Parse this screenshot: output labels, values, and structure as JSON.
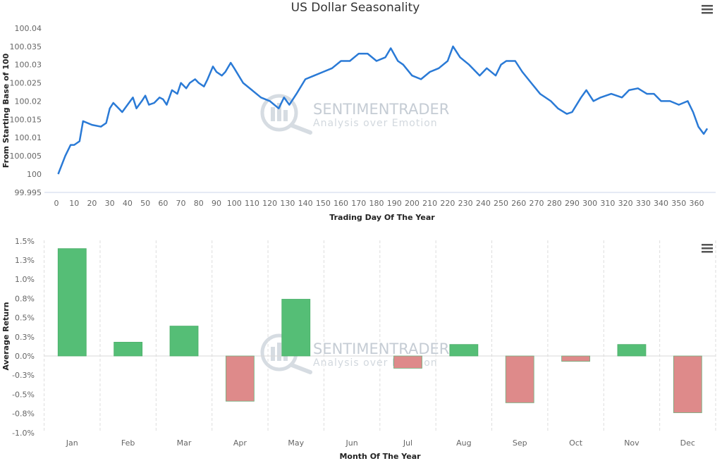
{
  "watermark": {
    "brand": "SENTIMENTRADER",
    "tagline": "Analysis over Emotion"
  },
  "colors": {
    "line": "#2a7ad6",
    "positive": "#55be76",
    "negative": "#de8a8a",
    "menu": "#555555"
  },
  "icons": {
    "menu": "hamburger-menu-icon"
  },
  "chart_data": [
    {
      "type": "line",
      "title": "US Dollar Seasonality",
      "xlabel": "Trading Day Of The Year",
      "ylabel": "From Starting Base of 100",
      "xlim": [
        0,
        366
      ],
      "ylim": [
        99.995,
        100.04
      ],
      "xticks": [
        0,
        10,
        20,
        30,
        40,
        50,
        60,
        70,
        80,
        90,
        100,
        110,
        120,
        130,
        140,
        150,
        160,
        170,
        180,
        190,
        200,
        210,
        220,
        230,
        240,
        250,
        260,
        270,
        280,
        290,
        300,
        310,
        320,
        330,
        340,
        350,
        360
      ],
      "yticks": [
        "99.995",
        "100",
        "100.005",
        "100.01",
        "100.015",
        "100.02",
        "100.025",
        "100.03",
        "100.035",
        "100.04"
      ],
      "series": [
        {
          "name": "US Dollar",
          "x": [
            1,
            5,
            8,
            10,
            13,
            15,
            20,
            25,
            28,
            30,
            32,
            35,
            37,
            40,
            43,
            45,
            48,
            50,
            52,
            55,
            58,
            60,
            62,
            65,
            68,
            70,
            73,
            75,
            78,
            80,
            83,
            85,
            88,
            90,
            93,
            95,
            98,
            100,
            105,
            110,
            115,
            120,
            125,
            128,
            131,
            135,
            140,
            145,
            150,
            155,
            160,
            165,
            170,
            175,
            180,
            185,
            188,
            192,
            195,
            200,
            205,
            210,
            215,
            220,
            223,
            227,
            232,
            238,
            242,
            247,
            250,
            253,
            258,
            262,
            267,
            272,
            278,
            282,
            287,
            290,
            295,
            298,
            302,
            306,
            312,
            318,
            322,
            327,
            332,
            336,
            340,
            345,
            350,
            355,
            358,
            361,
            364,
            366
          ],
          "y": [
            100.0,
            100.005,
            100.008,
            100.008,
            100.009,
            100.0145,
            100.0135,
            100.013,
            100.014,
            100.018,
            100.0195,
            100.018,
            100.017,
            100.019,
            100.021,
            100.018,
            100.02,
            100.0215,
            100.019,
            100.0195,
            100.021,
            100.0205,
            100.019,
            100.023,
            100.022,
            100.025,
            100.0235,
            100.025,
            100.026,
            100.025,
            100.024,
            100.026,
            100.0295,
            100.028,
            100.027,
            100.028,
            100.0305,
            100.029,
            100.025,
            100.023,
            100.021,
            100.02,
            100.018,
            100.021,
            100.019,
            100.022,
            100.026,
            100.027,
            100.028,
            100.029,
            100.031,
            100.031,
            100.033,
            100.033,
            100.031,
            100.032,
            100.0345,
            100.031,
            100.03,
            100.027,
            100.026,
            100.028,
            100.029,
            100.031,
            100.035,
            100.032,
            100.03,
            100.027,
            100.029,
            100.027,
            100.03,
            100.031,
            100.031,
            100.028,
            100.025,
            100.022,
            100.02,
            100.018,
            100.0165,
            100.017,
            100.021,
            100.023,
            100.02,
            100.021,
            100.022,
            100.021,
            100.023,
            100.0235,
            100.022,
            100.022,
            100.02,
            100.02,
            100.019,
            100.02,
            100.017,
            100.013,
            100.011,
            100.0125
          ]
        }
      ]
    },
    {
      "type": "bar",
      "title": "",
      "xlabel": "Month Of The Year",
      "ylabel": "Average Return",
      "categories": [
        "Jan",
        "Feb",
        "Mar",
        "Apr",
        "May",
        "Jun",
        "Jul",
        "Aug",
        "Sep",
        "Oct",
        "Nov",
        "Dec"
      ],
      "values": [
        1.4,
        0.18,
        0.39,
        -0.59,
        0.74,
        0.0,
        -0.16,
        0.15,
        -0.61,
        -0.07,
        0.15,
        -0.74
      ],
      "unit": "%",
      "ylim": [
        -1.0,
        1.5
      ],
      "yticks": [
        -1.0,
        -0.75,
        -0.5,
        -0.25,
        0.0,
        0.25,
        0.5,
        0.75,
        1.0,
        1.25,
        1.5
      ],
      "ytick_labels": [
        "-1.0%",
        "-0.8%",
        "-0.5%",
        "-0.3%",
        "0.0%",
        "0.3%",
        "0.5%",
        "0.8%",
        "1.0%",
        "1.3%",
        "1.5%"
      ]
    }
  ]
}
